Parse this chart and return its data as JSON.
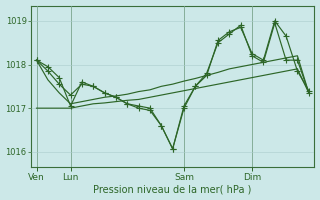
{
  "bg_color": "#cce8e8",
  "grid_color": "#aacccc",
  "line_color": "#2d6628",
  "xlabel": "Pression niveau de la mer( hPa )",
  "ylim": [
    1015.65,
    1019.35
  ],
  "yticks": [
    1016,
    1017,
    1018,
    1019
  ],
  "day_labels": [
    "Ven",
    "Lun",
    "Sam",
    "Dim"
  ],
  "day_positions": [
    0,
    3,
    13,
    19
  ],
  "total_points": 25,
  "series_volatile1": [
    1018.1,
    1017.95,
    1017.7,
    1017.05,
    1017.6,
    1017.5,
    1017.35,
    1017.25,
    1017.1,
    1017.0,
    1016.95,
    1016.6,
    1016.07,
    1017.0,
    1017.5,
    1017.75,
    1018.55,
    1018.75,
    1018.85,
    1018.25,
    1018.1,
    1019.0,
    1018.65,
    1017.85,
    1017.4
  ],
  "series_volatile2": [
    1018.1,
    1017.85,
    1017.55,
    1017.3,
    1017.55,
    1017.5,
    1017.35,
    1017.25,
    1017.1,
    1017.05,
    1017.0,
    1016.6,
    1016.07,
    1017.05,
    1017.5,
    1017.8,
    1018.5,
    1018.7,
    1018.9,
    1018.2,
    1018.05,
    1018.95,
    1018.1,
    1018.1,
    1017.35
  ],
  "series_trend1": [
    1017.0,
    1017.0,
    1017.0,
    1017.0,
    1017.05,
    1017.1,
    1017.12,
    1017.15,
    1017.18,
    1017.2,
    1017.25,
    1017.3,
    1017.35,
    1017.4,
    1017.45,
    1017.5,
    1017.55,
    1017.6,
    1017.65,
    1017.7,
    1017.75,
    1017.8,
    1017.85,
    1017.9,
    1017.35
  ],
  "series_trend2": [
    1018.1,
    1017.65,
    1017.35,
    1017.1,
    1017.15,
    1017.2,
    1017.25,
    1017.28,
    1017.32,
    1017.38,
    1017.42,
    1017.5,
    1017.55,
    1017.62,
    1017.68,
    1017.75,
    1017.82,
    1017.9,
    1017.95,
    1018.0,
    1018.05,
    1018.1,
    1018.15,
    1018.2,
    1017.35
  ]
}
